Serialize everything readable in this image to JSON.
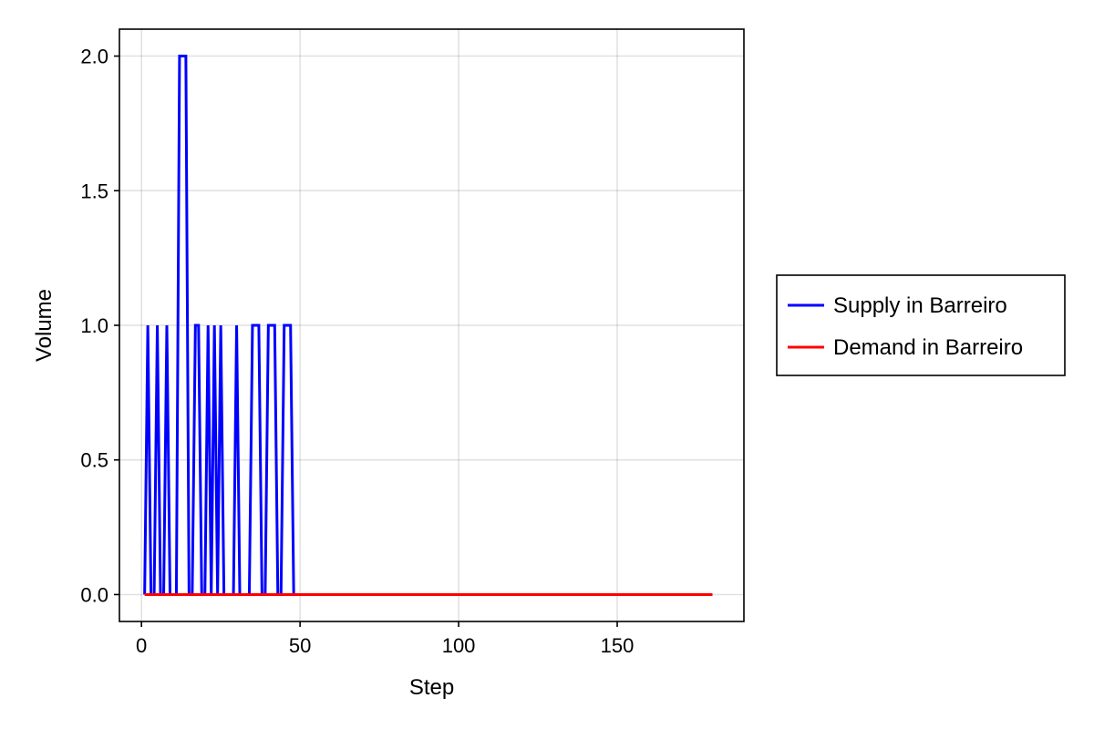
{
  "chart_data": {
    "type": "line",
    "title": "",
    "xlabel": "Step",
    "ylabel": "Volume",
    "xlim": [
      -6.95,
      189.95
    ],
    "ylim": [
      -0.1,
      2.1
    ],
    "xticks": [
      0,
      50,
      100,
      150
    ],
    "xtick_labels": [
      "0",
      "50",
      "100",
      "150"
    ],
    "yticks": [
      0.0,
      0.5,
      1.0,
      1.5,
      2.0
    ],
    "ytick_labels": [
      "0.0",
      "0.5",
      "1.0",
      "1.5",
      "2.0"
    ],
    "grid": true,
    "legend_position": "right",
    "series": [
      {
        "name": "Supply in Barreiro",
        "color": "#0000ff",
        "x": [
          1,
          2,
          3,
          4,
          5,
          6,
          7,
          8,
          9,
          10,
          11,
          12,
          13,
          14,
          15,
          16,
          17,
          18,
          19,
          20,
          21,
          22,
          23,
          24,
          25,
          26,
          27,
          28,
          29,
          30,
          31,
          32,
          33,
          34,
          35,
          36,
          37,
          38,
          39,
          40,
          41,
          42,
          43,
          44,
          45,
          46,
          47,
          48,
          49,
          50,
          180
        ],
        "y": [
          0,
          1,
          0,
          0,
          1,
          0,
          0,
          1,
          0,
          0,
          0,
          2,
          2,
          2,
          0,
          0,
          1,
          1,
          0,
          0,
          1,
          0,
          1,
          0,
          1,
          0,
          0,
          0,
          0,
          1,
          0,
          0,
          0,
          0,
          1,
          1,
          1,
          0,
          0,
          1,
          1,
          1,
          0,
          0,
          1,
          1,
          1,
          0,
          0,
          0,
          0
        ]
      },
      {
        "name": "Demand in Barreiro",
        "color": "#ff0000",
        "x": [
          1,
          180
        ],
        "y": [
          0,
          0
        ]
      }
    ]
  }
}
